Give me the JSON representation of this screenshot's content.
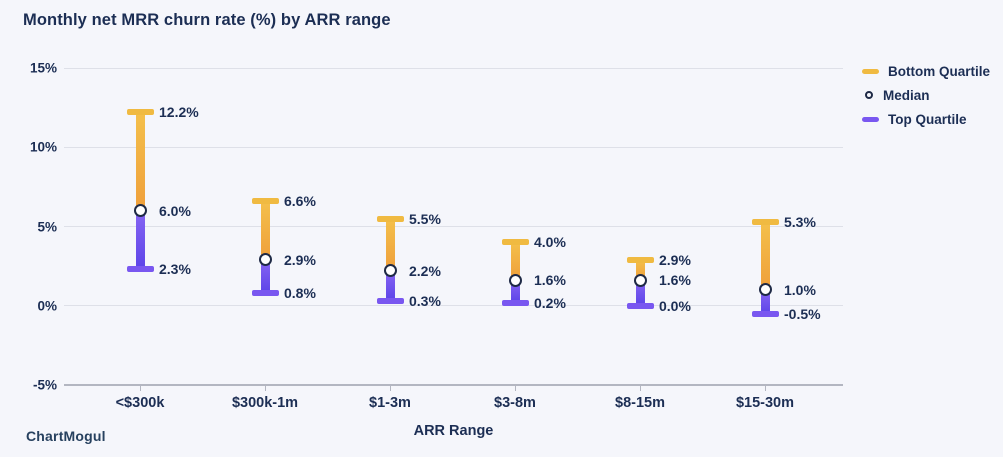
{
  "page": {
    "background": "#F5F6FB"
  },
  "header": {
    "title": "Monthly net MRR churn rate (%) by ARR range"
  },
  "legend": {
    "position": "right",
    "items": [
      {
        "label": "Bottom Quartile",
        "marker": "dash",
        "color": "#F0BA41"
      },
      {
        "label": "Median",
        "marker": "circle",
        "color": "#FFFFFF"
      },
      {
        "label": "Top Quartile",
        "marker": "dash",
        "color": "#7957F0"
      }
    ]
  },
  "watermark": {
    "text": "ChartMogul"
  },
  "chart_data": {
    "type": "error-bar",
    "title": "Monthly net MRR churn rate (%) by ARR range",
    "xlabel": "ARR Range",
    "ylabel": "",
    "categories": [
      "<$300k",
      "$300k-1m",
      "$1-3m",
      "$3-8m",
      "$8-15m",
      "$15-30m"
    ],
    "series": [
      {
        "name": "Bottom Quartile",
        "values": [
          12.2,
          6.6,
          5.5,
          4.0,
          2.9,
          5.3
        ],
        "labels": [
          "12.2%",
          "6.6%",
          "5.5%",
          "4.0%",
          "2.9%",
          "5.3%"
        ],
        "color_top": "#F4C04B",
        "color_bottom": "#EF9F3B",
        "cap_color": "#F0BA41"
      },
      {
        "name": "Median",
        "values": [
          6.0,
          2.9,
          2.2,
          1.6,
          1.6,
          1.0
        ],
        "labels": [
          "6.0%",
          "2.9%",
          "2.2%",
          "1.6%",
          "1.6%",
          "1.0%"
        ],
        "marker": "circle",
        "marker_fill": "#FFFFFF",
        "marker_ring": "#1F2A46"
      },
      {
        "name": "Top Quartile",
        "values": [
          2.3,
          0.8,
          0.3,
          0.2,
          0.0,
          -0.5
        ],
        "labels": [
          "2.3%",
          "0.8%",
          "0.3%",
          "0.2%",
          "0.0%",
          "-0.5%"
        ],
        "color_top": "#8765F3",
        "color_bottom": "#5C44E8",
        "cap_color": "#7957F0"
      }
    ],
    "y_axis": {
      "min": -5,
      "max": 15,
      "ticks": [
        15,
        10,
        5,
        0,
        -5
      ],
      "tick_labels": [
        "15%",
        "10%",
        "5%",
        "0%",
        "-5%"
      ]
    },
    "grid": true,
    "legend_position": "right"
  }
}
